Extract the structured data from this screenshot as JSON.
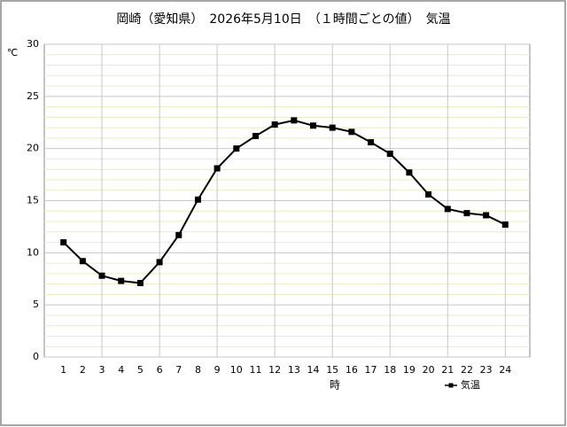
{
  "chart_data": {
    "type": "line",
    "title": "岡崎（愛知県）　2026年5月10日　（１時間ごとの値）　気温",
    "y_label": "℃",
    "x_label": "時",
    "x": [
      1,
      2,
      3,
      4,
      5,
      6,
      7,
      8,
      9,
      10,
      11,
      12,
      13,
      14,
      15,
      16,
      17,
      18,
      19,
      20,
      21,
      22,
      23,
      24
    ],
    "series": [
      {
        "name": "気温",
        "color": "#000000",
        "values": [
          11.0,
          9.2,
          7.8,
          7.3,
          7.1,
          9.1,
          11.7,
          15.1,
          18.1,
          20.0,
          21.2,
          22.3,
          22.7,
          22.2,
          22.0,
          21.6,
          20.6,
          19.5,
          17.7,
          15.6,
          14.2,
          13.8,
          13.6,
          12.7
        ]
      }
    ],
    "xlim": [
      0,
      25
    ],
    "ylim": [
      0,
      30
    ],
    "xticks": [
      1,
      2,
      3,
      4,
      5,
      6,
      7,
      8,
      9,
      10,
      11,
      12,
      13,
      14,
      15,
      16,
      17,
      18,
      19,
      20,
      21,
      22,
      23,
      24
    ],
    "xgrid": [
      3,
      6,
      9,
      12,
      15,
      18,
      21,
      24
    ],
    "yticks": [
      0,
      5,
      10,
      15,
      20,
      25,
      30
    ],
    "minor_yticks": [
      1,
      2,
      3,
      4,
      6,
      7,
      8,
      9,
      11,
      12,
      13,
      14,
      16,
      17,
      18,
      19,
      21,
      22,
      23,
      24,
      26,
      27,
      28,
      29
    ],
    "grid": true,
    "legend": "bottom-right"
  }
}
